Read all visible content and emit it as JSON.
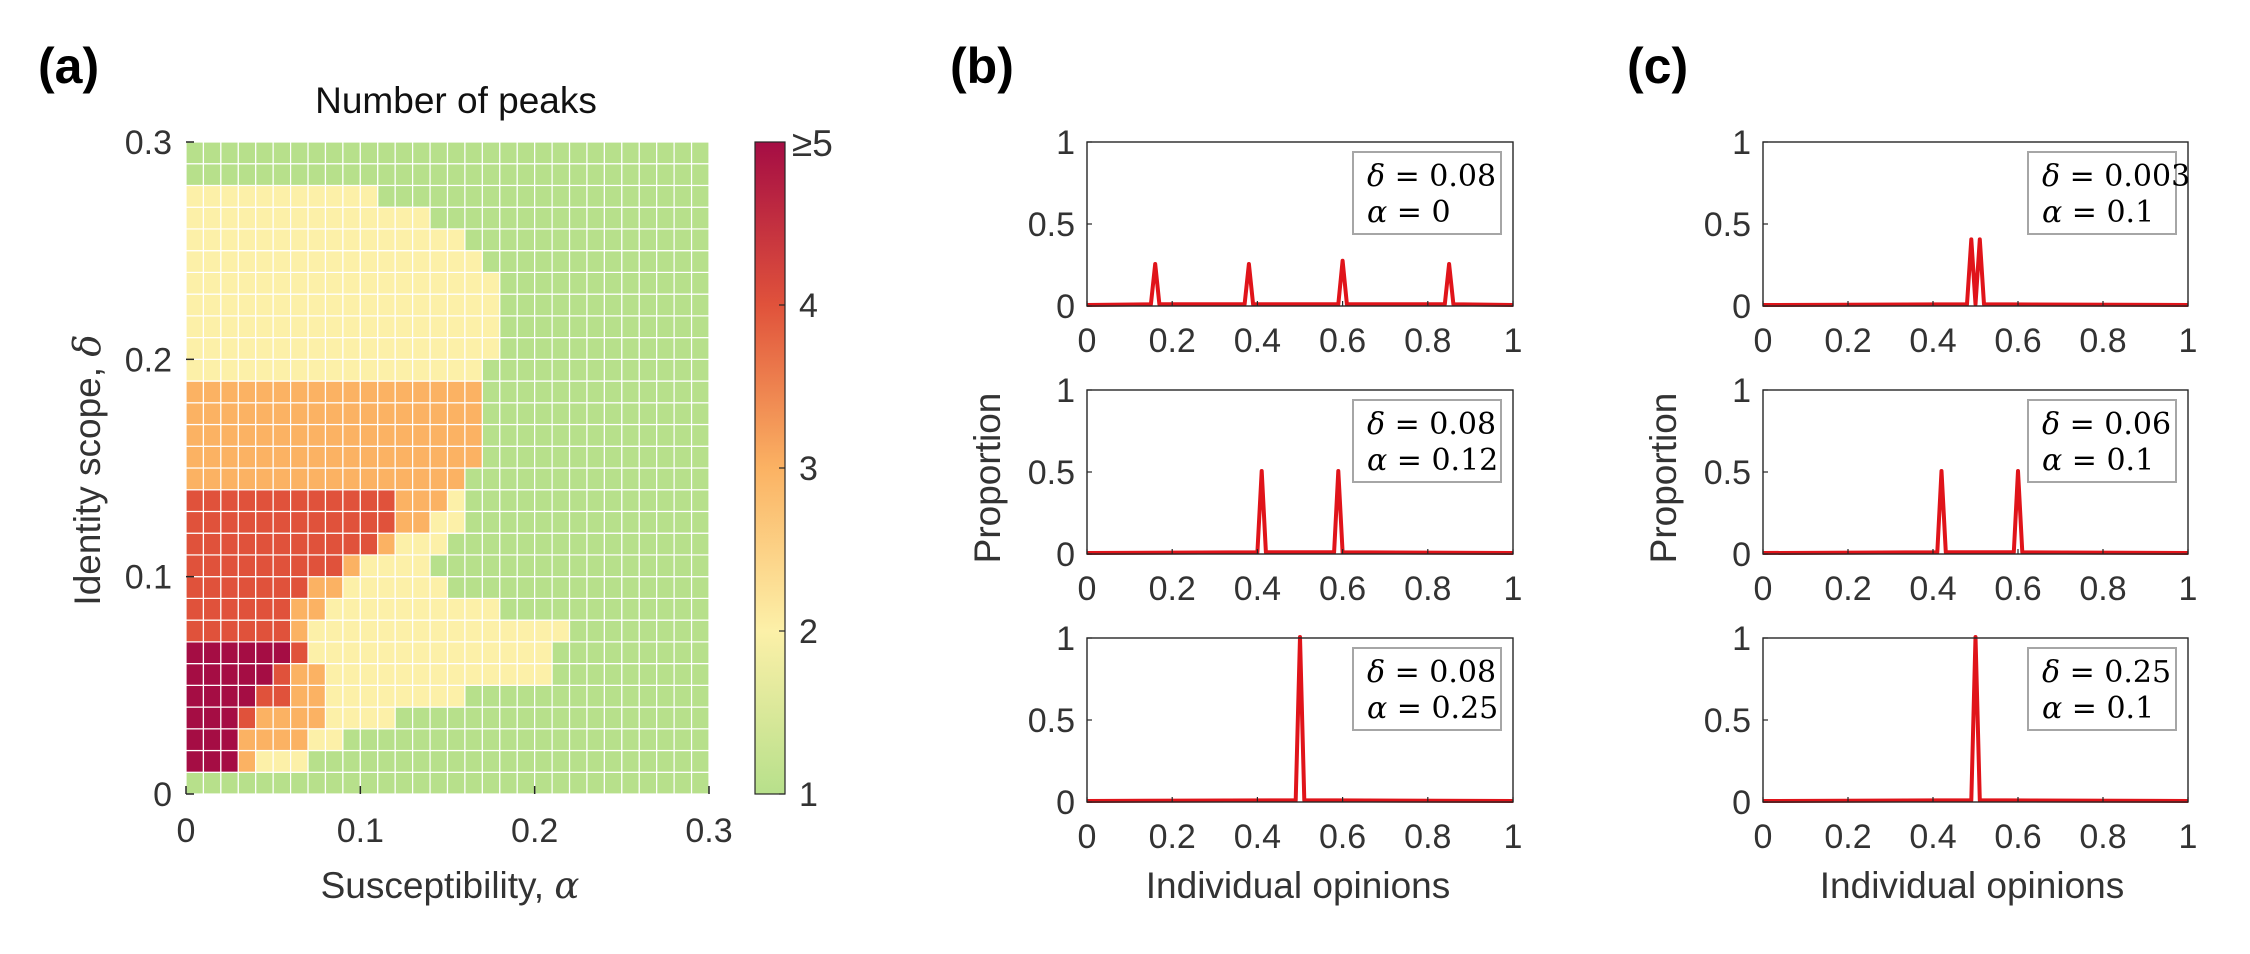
{
  "colors": {
    "peak_line": "#e0141a",
    "axis": "#262626",
    "annotation_box_border": "#a6a6a6",
    "grid_line": "#ffffff",
    "cmap": [
      "#b7e08b",
      "#fcf0a8",
      "#fbb263",
      "#e0523b",
      "#a50d44"
    ]
  },
  "chart_data": [
    {
      "panel": "(a)",
      "type": "heatmap",
      "title": "Number of peaks",
      "xlabel_text": "Susceptibility, ",
      "xlabel_symbol": "α",
      "ylabel_text": "Identity scope, ",
      "ylabel_symbol": "δ",
      "xlim": [
        0,
        0.3
      ],
      "ylim": [
        0,
        0.3
      ],
      "xticks": [
        "0",
        "0.1",
        "0.2",
        "0.3"
      ],
      "yticks": [
        "0",
        "0.1",
        "0.2",
        "0.3"
      ],
      "grid_n": 30,
      "cell_size": 0.01,
      "colorbar": {
        "ticks": [
          "1",
          "2",
          "3",
          "4"
        ],
        "top_label": "≥5",
        "range": [
          1,
          5
        ]
      },
      "regions": [
        {
          "peaks": 5,
          "x_max": [
            0.005,
            0.035,
            0.035,
            0.035,
            0.045,
            0.055,
            0.06
          ]
        },
        {
          "peaks": 4,
          "x_max": [
            0.005,
            0.035,
            0.035,
            0.045,
            0.06,
            0.06,
            0.07,
            0.06,
            0.06,
            0.07,
            0.09,
            0.11,
            0.12,
            0.12
          ]
        },
        {
          "peaks": 3,
          "x_max": [
            0.005,
            0.04,
            0.07,
            0.08,
            0.085,
            0.08,
            0.07,
            0.07,
            0.08,
            0.09,
            0.1,
            0.12,
            0.14,
            0.15,
            0.16,
            0.17,
            0.17,
            0.17,
            0.17
          ]
        },
        {
          "peaks": 2,
          "x_max": [
            0.005,
            0.07,
            0.09,
            0.12,
            0.16,
            0.21,
            0.21,
            0.22,
            0.18,
            0.15,
            0.14,
            0.15,
            0.16,
            0.16,
            0.16,
            0.17,
            0.17,
            0.17,
            0.17,
            0.17,
            0.18,
            0.18,
            0.18,
            0.18,
            0.17,
            0.16,
            0.14,
            0.11
          ]
        }
      ]
    },
    {
      "panel": "(b)",
      "type": "line",
      "xlabel": "Individual opinions",
      "ylabel": "Proportion",
      "xlim": [
        0,
        1
      ],
      "ylim": [
        0,
        1
      ],
      "xticks": [
        "0",
        "0.2",
        "0.4",
        "0.6",
        "0.8",
        "1"
      ],
      "yticks": [
        "0",
        "0.5",
        "1"
      ],
      "subplots": [
        {
          "delta": "0.08",
          "alpha": "0",
          "peaks": [
            {
              "x": 0.16,
              "y": 0.25
            },
            {
              "x": 0.38,
              "y": 0.25
            },
            {
              "x": 0.6,
              "y": 0.27
            },
            {
              "x": 0.85,
              "y": 0.25
            }
          ]
        },
        {
          "delta": "0.08",
          "alpha": "0.12",
          "peaks": [
            {
              "x": 0.41,
              "y": 0.5
            },
            {
              "x": 0.59,
              "y": 0.5
            }
          ]
        },
        {
          "delta": "0.08",
          "alpha": "0.25",
          "peaks": [
            {
              "x": 0.5,
              "y": 1.0
            }
          ]
        }
      ]
    },
    {
      "panel": "(c)",
      "type": "line",
      "xlabel": "Individual opinions",
      "ylabel": "Proportion",
      "xlim": [
        0,
        1
      ],
      "ylim": [
        0,
        1
      ],
      "xticks": [
        "0",
        "0.2",
        "0.4",
        "0.6",
        "0.8",
        "1"
      ],
      "yticks": [
        "0",
        "0.5",
        "1"
      ],
      "subplots": [
        {
          "delta": "0.003",
          "alpha": "0.1",
          "peaks": [
            {
              "x": 0.49,
              "y": 0.4
            },
            {
              "x": 0.51,
              "y": 0.4
            }
          ]
        },
        {
          "delta": "0.06",
          "alpha": "0.1",
          "peaks": [
            {
              "x": 0.42,
              "y": 0.5
            },
            {
              "x": 0.6,
              "y": 0.5
            }
          ]
        },
        {
          "delta": "0.25",
          "alpha": "0.1",
          "peaks": [
            {
              "x": 0.5,
              "y": 1.0
            }
          ]
        }
      ]
    }
  ]
}
